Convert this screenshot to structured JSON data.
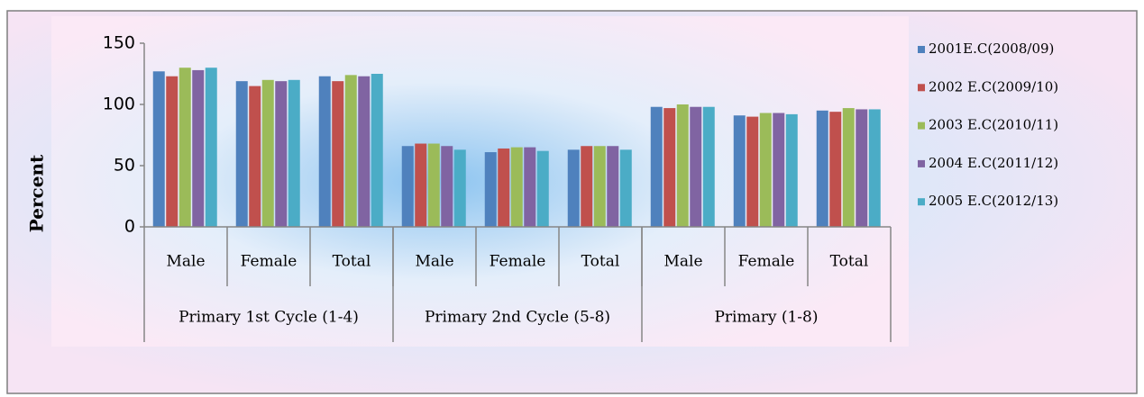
{
  "chart_data": {
    "type": "bar",
    "y_label": "Percent",
    "categories": [
      "Male",
      "Female",
      "Total",
      "Male",
      "Female",
      "Total",
      "Male",
      "Female",
      "Total"
    ],
    "groups": [
      "Primary 1st Cycle (1-4)",
      "Primary 2nd Cycle (5-8)",
      "Primary (1-8)"
    ],
    "series": [
      {
        "name": "2001E.C(2008/09)",
        "color": "#4f81bd",
        "values": [
          127,
          119,
          123,
          66,
          61,
          63,
          98,
          91,
          95
        ]
      },
      {
        "name": "2002 E.C(2009/10)",
        "color": "#c0504d",
        "values": [
          123,
          115,
          119,
          68,
          64,
          66,
          97,
          90,
          94
        ]
      },
      {
        "name": "2003 E.C(2010/11)",
        "color": "#9bbb59",
        "values": [
          130,
          120,
          124,
          68,
          65,
          66,
          100,
          93,
          97
        ]
      },
      {
        "name": "2004 E.C(2011/12)",
        "color": "#8064a2",
        "values": [
          128,
          119,
          123,
          66,
          65,
          66,
          98,
          93,
          96
        ]
      },
      {
        "name": "2005  E.C(2012/13)",
        "color": "#4bacc6",
        "values": [
          130,
          120,
          125,
          63,
          62,
          63,
          98,
          92,
          96
        ]
      }
    ],
    "ylim": [
      0,
      150
    ],
    "yticks": [
      0,
      50,
      100,
      150
    ],
    "grid": false,
    "legend": "right"
  }
}
